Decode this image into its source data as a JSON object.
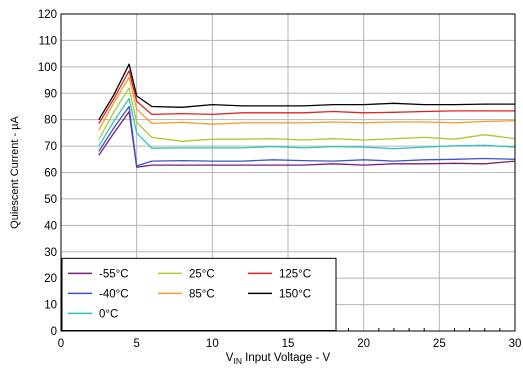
{
  "chart_data": {
    "type": "line",
    "xlabel_main": "V",
    "xlabel_sub": "IN",
    "xlabel_rest": " Input Voltage - V",
    "ylabel": "Quiescent Current - µA",
    "xlim": [
      0,
      30
    ],
    "ylim": [
      0,
      120
    ],
    "x_ticks": [
      0,
      5,
      10,
      15,
      20,
      25,
      30
    ],
    "y_ticks": [
      0,
      10,
      20,
      30,
      40,
      50,
      60,
      70,
      80,
      90,
      100,
      110,
      120
    ],
    "grid": true,
    "legend_position": "bottom-left",
    "x": [
      2.5,
      3.5,
      4.5,
      5.0,
      6.0,
      8.0,
      10.0,
      12.0,
      14.0,
      16.0,
      18.0,
      20.0,
      22.0,
      24.0,
      26.0,
      28.0,
      30.0
    ],
    "series": [
      {
        "name": "-55°C",
        "color": "#7a1e7a",
        "values": [
          66.5,
          75,
          83,
          62,
          62.8,
          62.8,
          62.8,
          62.8,
          62.8,
          62.8,
          63.3,
          62.8,
          63.3,
          63.3,
          63.5,
          63.3,
          64.3
        ]
      },
      {
        "name": "-40°C",
        "color": "#3b56c9",
        "values": [
          68,
          77,
          85,
          62.5,
          64.3,
          64.5,
          64.3,
          64.3,
          64.8,
          64.5,
          64.3,
          64.8,
          64.3,
          64.8,
          65,
          65.3,
          65
        ]
      },
      {
        "name": "0°C",
        "color": "#33c2c2",
        "values": [
          70,
          79.5,
          88,
          75,
          69.2,
          69.3,
          69.3,
          69.3,
          69.8,
          69.3,
          69.8,
          69.6,
          69,
          69.6,
          70.1,
          70.3,
          69.6
        ]
      },
      {
        "name": "25°C",
        "color": "#a6cc33",
        "values": [
          72.5,
          83,
          92,
          79,
          73.3,
          71.8,
          72.6,
          72.6,
          72.8,
          72.3,
          72.8,
          72.3,
          72.8,
          73.3,
          72.6,
          74.3,
          72.8
        ]
      },
      {
        "name": "85°C",
        "color": "#f0a030",
        "values": [
          76,
          86.5,
          96,
          84,
          78.6,
          79,
          78.3,
          78.8,
          78.8,
          78.8,
          79.1,
          78.8,
          79.1,
          79.1,
          78.8,
          79.3,
          79.6
        ]
      },
      {
        "name": "125°C",
        "color": "#e02222",
        "values": [
          78.5,
          88,
          98.5,
          87,
          82,
          82.3,
          82,
          82.6,
          82.6,
          82.6,
          83.1,
          82.6,
          82.8,
          83.1,
          83.3,
          83.3,
          83.3
        ]
      },
      {
        "name": "150°C",
        "color": "#000000",
        "values": [
          80,
          89.5,
          101,
          89,
          85,
          84.7,
          85.7,
          85.2,
          85.2,
          85.2,
          85.7,
          85.7,
          86.2,
          85.7,
          85.7,
          85.9,
          85.9
        ]
      }
    ]
  }
}
